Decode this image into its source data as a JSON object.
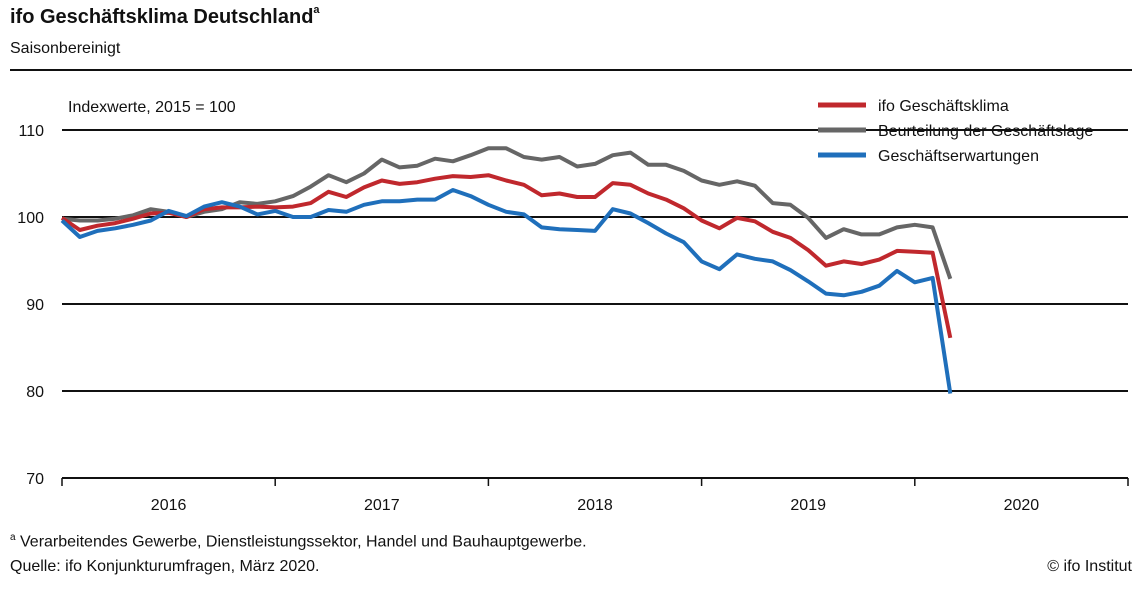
{
  "header": {
    "title": "ifo Geschäftsklima Deutschland",
    "title_marker": "a",
    "subtitle": "Saisonbereinigt"
  },
  "footer": {
    "footnote_marker": "a",
    "footnote": "Verarbeitendes Gewerbe, Dienstleistungssektor, Handel und Bauhauptgewerbe.",
    "source": "Quelle: ifo Konjunkturumfragen, März 2020.",
    "copyright": "© ifo Institut"
  },
  "colors": {
    "klima": "#c0282d",
    "lage": "#666666",
    "erwartungen": "#1f6fbb",
    "axis": "#111111"
  },
  "chart_data": {
    "type": "line",
    "unit_label": "Indexwerte, 2015 = 100",
    "ylim": [
      70,
      110
    ],
    "yticks": [
      70,
      80,
      90,
      100,
      110
    ],
    "grid": "horizontal",
    "legend_position": "top-right",
    "x_start": "2016-01",
    "xlim": [
      "2016-01",
      "2020-12"
    ],
    "year_labels": [
      "2016",
      "2017",
      "2018",
      "2019",
      "2020"
    ],
    "series": [
      {
        "name": "ifo Geschäftsklima",
        "color": "#c0282d",
        "values": [
          99.9,
          98.5,
          99.0,
          99.3,
          99.8,
          100.4,
          100.5,
          100.0,
          100.9,
          101.1,
          101.1,
          101.2,
          101.1,
          101.2,
          101.6,
          102.9,
          102.3,
          103.4,
          104.2,
          103.8,
          104.0,
          104.4,
          104.7,
          104.6,
          104.8,
          104.2,
          103.7,
          102.5,
          102.7,
          102.3,
          102.3,
          103.9,
          103.7,
          102.7,
          102.0,
          101.0,
          99.6,
          98.7,
          99.9,
          99.5,
          98.3,
          97.6,
          96.2,
          94.4,
          94.9,
          94.6,
          95.1,
          96.1,
          96.0,
          95.9,
          86.1
        ]
      },
      {
        "name": "Beurteilung der Geschäftslage",
        "color": "#666666",
        "values": [
          99.8,
          99.6,
          99.6,
          99.8,
          100.2,
          100.9,
          100.6,
          100.0,
          100.6,
          100.9,
          101.7,
          101.5,
          101.8,
          102.4,
          103.5,
          104.8,
          104.0,
          105.0,
          106.6,
          105.7,
          105.9,
          106.7,
          106.4,
          107.1,
          107.9,
          107.9,
          106.9,
          106.6,
          106.9,
          105.8,
          106.1,
          107.1,
          107.4,
          106.0,
          106.0,
          105.3,
          104.2,
          103.7,
          104.1,
          103.6,
          101.6,
          101.4,
          99.9,
          97.6,
          98.6,
          98.0,
          98.0,
          98.8,
          99.1,
          98.8,
          92.9
        ]
      },
      {
        "name": "Geschäftserwartungen",
        "color": "#1f6fbb",
        "values": [
          99.6,
          97.7,
          98.4,
          98.7,
          99.1,
          99.6,
          100.7,
          100.1,
          101.2,
          101.7,
          101.2,
          100.3,
          100.7,
          100.0,
          100.0,
          100.8,
          100.6,
          101.4,
          101.8,
          101.8,
          102.0,
          102.0,
          103.1,
          102.4,
          101.4,
          100.6,
          100.3,
          98.8,
          98.6,
          98.5,
          98.4,
          100.9,
          100.4,
          99.3,
          98.1,
          97.1,
          94.9,
          94.0,
          95.7,
          95.2,
          94.9,
          93.9,
          92.6,
          91.2,
          91.0,
          91.4,
          92.1,
          93.8,
          92.5,
          93.0,
          79.7
        ]
      }
    ]
  }
}
